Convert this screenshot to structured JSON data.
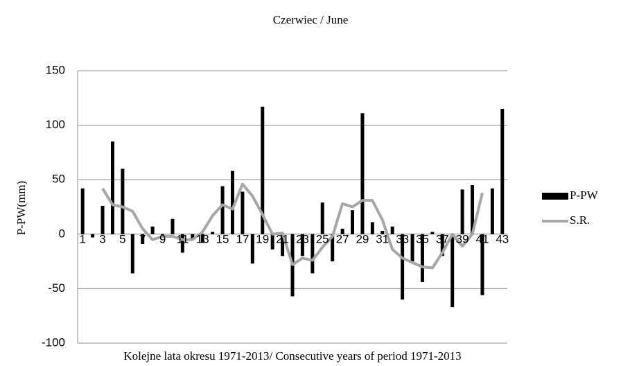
{
  "chart_data": {
    "type": "bar",
    "title": "Czerwiec / June",
    "x_label": "Kolejne lata okresu 1971-2013/ Consecutive years of period 1971-2013",
    "y_label": "P-PW(mm)",
    "categories": [
      "1",
      null,
      "3",
      null,
      "5",
      null,
      "7",
      null,
      "9",
      null,
      "11",
      null,
      "13",
      null,
      "15",
      null,
      "17",
      null,
      "19",
      null,
      "21",
      null,
      "23",
      null,
      "25",
      null,
      "27",
      null,
      "29",
      null,
      "31",
      null,
      "33",
      null,
      "35",
      null,
      "37",
      null,
      "39",
      null,
      "41",
      null,
      "43"
    ],
    "series": [
      {
        "name": "P-PW",
        "type": "bar",
        "color": "#000000",
        "values": [
          42,
          -3,
          26,
          85,
          60,
          -36,
          -9,
          7,
          -1,
          14,
          -17,
          -5,
          -8,
          2,
          44,
          58,
          39,
          -27,
          117,
          -14,
          -20,
          -57,
          -20,
          -36,
          29,
          -25,
          5,
          22,
          111,
          11,
          3,
          7,
          -60,
          -25,
          -44,
          2,
          -20,
          -67,
          41,
          45,
          -56,
          42,
          115
        ]
      },
      {
        "name": "S.R.",
        "type": "line",
        "color": "#a6a6a6",
        "values": [
          null,
          null,
          42,
          27,
          25,
          21,
          5,
          -5,
          -2,
          -2,
          -5,
          -5,
          2,
          17,
          27,
          23,
          46,
          35,
          18,
          0,
          1,
          -28,
          -22,
          -24,
          -12,
          -2,
          28,
          25,
          31,
          31,
          13,
          -14,
          -22,
          -26,
          -30,
          -31,
          -17,
          0,
          -11,
          0,
          38,
          null,
          null
        ]
      }
    ],
    "ylim": [
      -100,
      150
    ],
    "yticks": [
      -100,
      -50,
      0,
      50,
      100,
      150
    ],
    "grid": true,
    "legend": "right"
  }
}
